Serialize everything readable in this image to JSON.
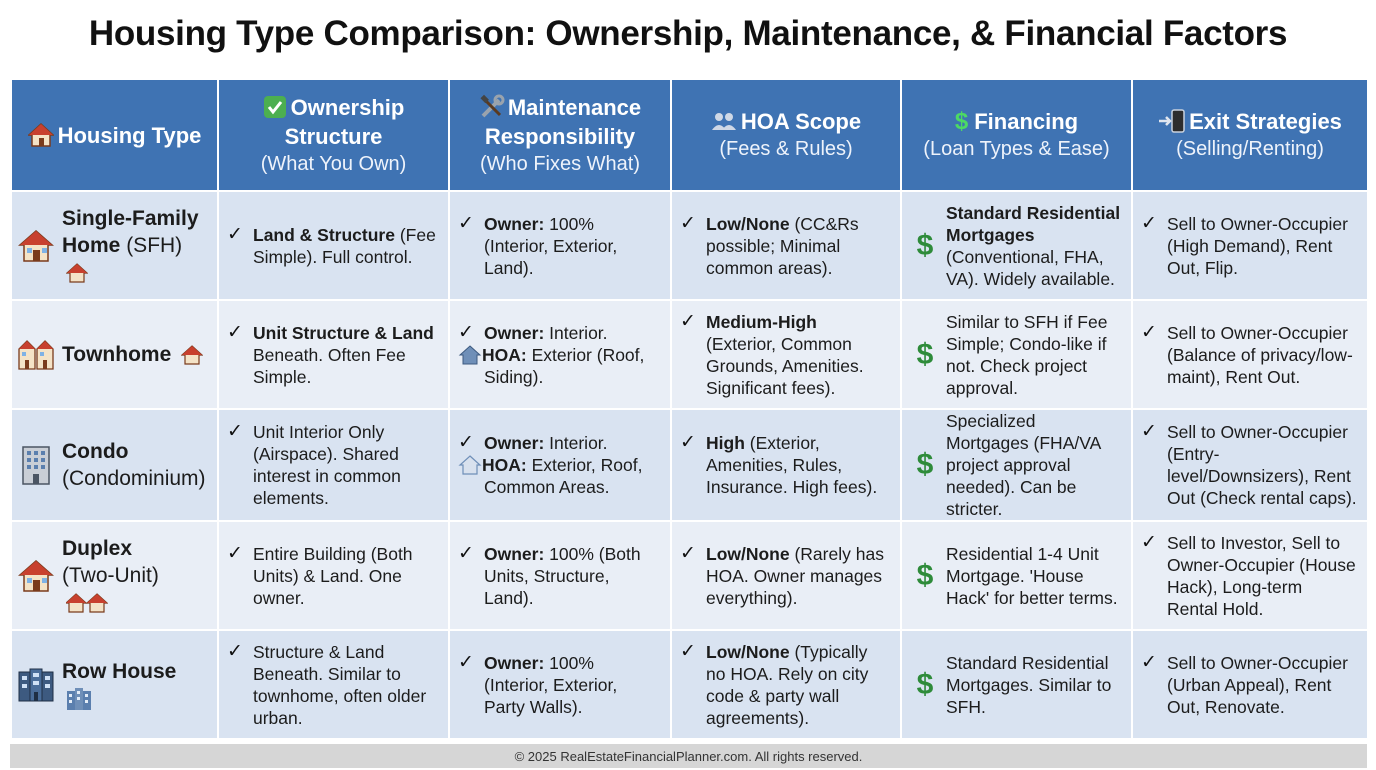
{
  "title": "Housing Type Comparison: Ownership, Maintenance, & Financial Factors",
  "colors": {
    "header_bg": "#3f73b3",
    "row_odd": "#d9e3f1",
    "row_even": "#e9eef6",
    "dollar": "#2e8b3a"
  },
  "headers": [
    {
      "icon": "house-icon",
      "main": "Housing Type",
      "sub": ""
    },
    {
      "icon": "check-box-icon",
      "main": "Ownership Structure",
      "sub": "(What You Own)"
    },
    {
      "icon": "tools-icon",
      "main": "Maintenance Responsibility",
      "sub": "(Who Fixes What)"
    },
    {
      "icon": "people-icon",
      "main": "HOA Scope",
      "sub": "(Fees & Rules)"
    },
    {
      "icon": "dollar-icon",
      "main": "Financing",
      "sub": "(Loan Types & Ease)"
    },
    {
      "icon": "exit-phone-icon",
      "main": "Exit Strategies",
      "sub": "(Selling/Renting)"
    }
  ],
  "rows": [
    {
      "type_bold": "Single-Family Home",
      "type_rest": " (SFH)",
      "icon": "house-icon",
      "ownership": {
        "bold": "Land & Structure",
        "text": " (Fee Simple). Full control."
      },
      "maintenance": [
        {
          "bold": "Owner:",
          "text": " 100% (Interior, Exterior, Land)."
        }
      ],
      "hoa": {
        "bold": "Low/None",
        "text": " (CC&Rs possible; Minimal common areas)."
      },
      "financing": {
        "bold": "Standard Residential Mortgages",
        "text": " (Conventional, FHA, VA). Widely available."
      },
      "exit": "Sell to Owner-Occupier (High Demand), Rent Out, Flip."
    },
    {
      "type_bold": "Townhome",
      "type_rest": "",
      "icon": "townhome-icon",
      "ownership": {
        "bold": "Unit Structure & Land",
        "text": " Beneath. Often Fee Simple."
      },
      "maintenance": [
        {
          "bold": "Owner:",
          "text": " Interior."
        },
        {
          "bold": "HOA:",
          "text": " Exterior (Roof, Siding)."
        }
      ],
      "hoa": {
        "bold": "Medium-High",
        "text": " (Exterior, Common Grounds, Amenities. Significant fees)."
      },
      "financing": {
        "bold": "",
        "text": "Similar to SFH if Fee Simple; Condo-like if not. Check project approval."
      },
      "exit": "Sell to Owner-Occupier (Balance of privacy/low-maint), Rent Out."
    },
    {
      "type_bold": "Condo",
      "type_rest": "(Condominium)",
      "icon": "building-icon",
      "ownership": {
        "bold": "",
        "text": "Unit Interior Only (Airspace). Shared interest in common elements."
      },
      "maintenance": [
        {
          "bold": "Owner:",
          "text": " Interior."
        },
        {
          "bold": "HOA:",
          "text": " Exterior, Roof, Common Areas."
        }
      ],
      "hoa": {
        "bold": "High",
        "text": " (Exterior, Amenities, Rules, Insurance. High fees)."
      },
      "financing": {
        "bold": "",
        "text": "Specialized Mortgages (FHA/VA project approval needed). Can be stricter."
      },
      "exit": "Sell to Owner-Occupier (Entry-level/Downsizers), Rent Out (Check rental caps)."
    },
    {
      "type_bold": "Duplex",
      "type_rest": "(Two-Unit)",
      "icon": "duplex-icon",
      "ownership": {
        "bold": "",
        "text": "Entire Building (Both Units) & Land. One owner."
      },
      "maintenance": [
        {
          "bold": "Owner:",
          "text": " 100% (Both Units, Structure, Land)."
        }
      ],
      "hoa": {
        "bold": "Low/None",
        "text": " (Rarely has HOA. Owner manages everything)."
      },
      "financing": {
        "bold": "",
        "text": "Residential 1-4 Unit Mortgage. 'House Hack' for better terms."
      },
      "exit": "Sell to Investor, Sell to Owner-Occupier (House Hack), Long-term Rental Hold."
    },
    {
      "type_bold": "Row House",
      "type_rest": "",
      "icon": "rowhouse-icon",
      "ownership": {
        "bold": "",
        "text": "Structure & Land Beneath. Similar to townhome, often older urban."
      },
      "maintenance": [
        {
          "bold": "Owner:",
          "text": " 100% (Interior, Exterior, Party Walls)."
        }
      ],
      "hoa": {
        "bold": "Low/None",
        "text": " (Typically no HOA. Rely on city code & party wall agreements)."
      },
      "financing": {
        "bold": "",
        "text": "Standard Residential Mortgages. Similar to SFH."
      },
      "exit": "Sell to Owner-Occupier (Urban Appeal), Rent Out, Renovate."
    }
  ],
  "footer": "© 2025 RealEstateFinancialPlanner.com. All rights reserved."
}
